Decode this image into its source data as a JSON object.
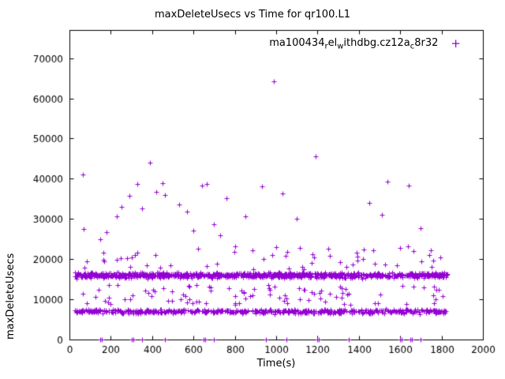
{
  "chart_data": {
    "type": "scatter",
    "title": "maxDeleteUsecs vs Time for qr100.L1",
    "xlabel": "Time(s)",
    "ylabel": "maxDeleteUsecs",
    "xlim": [
      0,
      2000
    ],
    "ylim": [
      0,
      77000
    ],
    "xticks": [
      0,
      200,
      400,
      600,
      800,
      1000,
      1200,
      1400,
      1600,
      1800,
      2000
    ],
    "yticks": [
      0,
      10000,
      20000,
      30000,
      40000,
      50000,
      60000,
      70000
    ],
    "grid": false,
    "marker": "plus",
    "point_color": "#9400d3",
    "axis_color": "#000000",
    "background_color": "#ffffff",
    "legend": {
      "position": "top-right",
      "label": "ma100434_rel_withdbg.cz12a_c8r32",
      "segments": [
        {
          "text": "ma100434"
        },
        {
          "sub": "r"
        },
        {
          "text": "el"
        },
        {
          "sub": "w"
        },
        {
          "text": "ithdbg.cz12a"
        },
        {
          "sub": "c"
        },
        {
          "text": "8r32"
        }
      ],
      "marker_glyph": "+"
    },
    "seed": 42,
    "bands": [
      {
        "name": "main-band",
        "x_min": 25,
        "x_max": 1830,
        "y_center": 16000,
        "y_jitter": 950,
        "count": 950
      },
      {
        "name": "lower-band",
        "x_min": 25,
        "x_max": 1830,
        "y_center": 7000,
        "y_jitter": 750,
        "count": 560
      },
      {
        "name": "mid-sparse",
        "x_min": 40,
        "x_max": 1810,
        "y_min": 8600,
        "y_max": 13600,
        "count": 95
      },
      {
        "name": "upper-sparse",
        "x_min": 40,
        "x_max": 1810,
        "y_min": 17400,
        "y_max": 23200,
        "count": 48
      }
    ],
    "outliers": [
      [
        65,
        41000
      ],
      [
        70,
        27500
      ],
      [
        150,
        25000
      ],
      [
        165,
        21700
      ],
      [
        180,
        26800
      ],
      [
        230,
        30700
      ],
      [
        250,
        33000
      ],
      [
        290,
        35800
      ],
      [
        330,
        38600
      ],
      [
        350,
        32700
      ],
      [
        390,
        44000
      ],
      [
        420,
        36700
      ],
      [
        450,
        38800
      ],
      [
        460,
        35900
      ],
      [
        530,
        33600
      ],
      [
        570,
        31900
      ],
      [
        600,
        27200
      ],
      [
        640,
        38300
      ],
      [
        665,
        38600
      ],
      [
        700,
        28600
      ],
      [
        730,
        26000
      ],
      [
        760,
        35100
      ],
      [
        800,
        23200
      ],
      [
        850,
        30600
      ],
      [
        930,
        38200
      ],
      [
        990,
        64200
      ],
      [
        1030,
        36300
      ],
      [
        1100,
        30100
      ],
      [
        1190,
        45600
      ],
      [
        1250,
        22600
      ],
      [
        1310,
        19200
      ],
      [
        1390,
        21600
      ],
      [
        1420,
        20100
      ],
      [
        1450,
        33900
      ],
      [
        1470,
        22100
      ],
      [
        1510,
        31100
      ],
      [
        1540,
        39300
      ],
      [
        1600,
        22700
      ],
      [
        1640,
        38300
      ],
      [
        1700,
        27600
      ],
      [
        1740,
        21100
      ],
      [
        1760,
        19600
      ]
    ],
    "zero_points": [
      150,
      158,
      300,
      308,
      352,
      460,
      648,
      656,
      700,
      950,
      1048,
      1200,
      1208,
      1350,
      1598,
      1606,
      1648,
      1656,
      1700
    ]
  }
}
